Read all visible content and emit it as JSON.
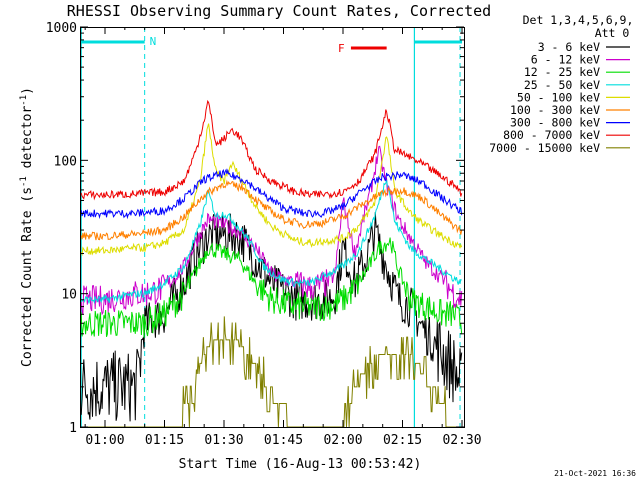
{
  "chart_data": {
    "type": "line",
    "title": "RHESSI Observing Summary Count Rates, Corrected",
    "xlabel": "Start Time (16-Aug-13 00:53:42)",
    "ylabel_pre": "Corrected Count Rate (s",
    "ylabel_exp1": "-1",
    "ylabel_mid": " detector",
    "ylabel_exp2": "-1",
    "ylabel_post": ")",
    "y_scale": "log",
    "ylim": [
      1,
      1000
    ],
    "xlim_minutes": [
      53.7,
      150.5
    ],
    "x_ticks": [
      {
        "label": "01:00",
        "minutes": 60
      },
      {
        "label": "01:15",
        "minutes": 75
      },
      {
        "label": "01:30",
        "minutes": 90
      },
      {
        "label": "01:45",
        "minutes": 105
      },
      {
        "label": "02:00",
        "minutes": 120
      },
      {
        "label": "02:15",
        "minutes": 135
      },
      {
        "label": "02:30",
        "minutes": 150
      }
    ],
    "y_ticks": [
      {
        "label": "1",
        "value": 1
      },
      {
        "label": "10",
        "value": 10
      },
      {
        "label": "100",
        "value": 100
      },
      {
        "label": "1000",
        "value": 1000
      }
    ],
    "legend_header": [
      "Det 1,3,4,5,6,9,",
      "Att 0"
    ],
    "legend_position": "right",
    "series": [
      {
        "name": "3 - 6 keV",
        "color": "#000000",
        "x": [
          54,
          60,
          68,
          70,
          75,
          80,
          83,
          86,
          90,
          94,
          98,
          102,
          108,
          112,
          116,
          118,
          120,
          123,
          126,
          128,
          131,
          134,
          137,
          141,
          145,
          148,
          150
        ],
        "values": [
          2,
          2,
          2,
          6,
          7,
          12,
          20,
          27,
          28,
          27,
          18,
          12,
          9,
          9,
          9,
          10,
          22,
          12,
          19,
          30,
          16,
          9,
          8,
          5,
          3.6,
          2.7,
          2
        ]
      },
      {
        "name": "6 - 12 keV",
        "color": "#cc00cc",
        "x": [
          54,
          60,
          68,
          70,
          75,
          80,
          83,
          86,
          90,
          94,
          98,
          102,
          108,
          112,
          116,
          118,
          120,
          123,
          125,
          127,
          129,
          131,
          134,
          137,
          141,
          145,
          148,
          150
        ],
        "values": [
          9,
          9,
          10,
          10,
          11,
          16,
          25,
          36,
          33,
          29,
          22,
          14,
          12,
          11,
          12,
          14,
          50,
          20,
          35,
          60,
          120,
          65,
          36,
          26,
          17,
          13,
          10,
          9
        ]
      },
      {
        "name": "12 - 25 keV",
        "color": "#00dd00",
        "x": [
          54,
          60,
          68,
          70,
          75,
          80,
          83,
          86,
          90,
          94,
          98,
          102,
          108,
          112,
          116,
          120,
          123,
          126,
          129,
          132,
          134,
          137,
          141,
          145,
          148,
          150
        ],
        "values": [
          6,
          6,
          6,
          6,
          7,
          10,
          15,
          22,
          20,
          18,
          12,
          9,
          8,
          8,
          8,
          9,
          11,
          15,
          22,
          25,
          15,
          9,
          8,
          7,
          7,
          6
        ]
      },
      {
        "name": "25 - 50 keV",
        "color": "#00dddd",
        "x": [
          54,
          60,
          68,
          70,
          75,
          80,
          84,
          86,
          88,
          90,
          92,
          96,
          100,
          104,
          108,
          112,
          116,
          120,
          124,
          128,
          131,
          133,
          137,
          141,
          145,
          148,
          150
        ],
        "values": [
          9,
          9,
          10,
          10,
          12,
          16,
          33,
          58,
          38,
          40,
          36,
          26,
          16,
          13,
          12,
          12,
          14,
          16,
          21,
          38,
          75,
          35,
          22,
          18,
          15,
          13,
          12
        ]
      },
      {
        "name": "50 - 100 keV",
        "color": "#dddd00",
        "x": [
          54,
          60,
          68,
          70,
          75,
          80,
          84,
          86,
          88,
          90,
          92,
          94,
          98,
          102,
          108,
          112,
          116,
          120,
          124,
          128,
          131,
          133,
          137,
          141,
          145,
          148,
          150
        ],
        "values": [
          21,
          21,
          22,
          22,
          24,
          30,
          70,
          190,
          80,
          70,
          95,
          75,
          45,
          32,
          25,
          24,
          25,
          26,
          32,
          48,
          155,
          60,
          40,
          32,
          27,
          24,
          22
        ]
      },
      {
        "name": "100 - 300 keV",
        "color": "#ff8000",
        "x": [
          54,
          60,
          68,
          75,
          80,
          85,
          90,
          95,
          100,
          105,
          110,
          115,
          120,
          125,
          130,
          135,
          140,
          145,
          150
        ],
        "values": [
          27,
          27,
          28,
          30,
          38,
          55,
          67,
          62,
          45,
          36,
          33,
          34,
          38,
          47,
          57,
          60,
          52,
          38,
          29
        ]
      },
      {
        "name": "300 - 800 keV",
        "color": "#0000ff",
        "x": [
          54,
          60,
          68,
          75,
          80,
          85,
          90,
          95,
          100,
          105,
          110,
          115,
          120,
          125,
          130,
          135,
          140,
          145,
          150
        ],
        "values": [
          40,
          40,
          40,
          42,
          52,
          72,
          80,
          72,
          55,
          44,
          40,
          40,
          45,
          60,
          75,
          78,
          68,
          52,
          41
        ]
      },
      {
        "name": "800 - 7000 keV",
        "color": "#ee0000",
        "x": [
          54,
          60,
          68,
          75,
          80,
          83,
          85,
          86,
          88,
          90,
          92,
          94,
          98,
          102,
          108,
          112,
          116,
          120,
          124,
          128,
          131,
          133,
          137,
          141,
          145,
          148,
          150
        ],
        "values": [
          55,
          55,
          56,
          58,
          70,
          120,
          200,
          280,
          130,
          145,
          170,
          150,
          85,
          70,
          58,
          55,
          56,
          58,
          70,
          110,
          240,
          120,
          105,
          90,
          75,
          65,
          56
        ]
      },
      {
        "name": "7000 - 15000 keV",
        "color": "#808000",
        "x": [
          54,
          66,
          68,
          71,
          76,
          82,
          84,
          86,
          90,
          94,
          98,
          101,
          104,
          108,
          112,
          117,
          119,
          121,
          125,
          128,
          131,
          133,
          136,
          138,
          140,
          142,
          145,
          147,
          149
        ],
        "values": [
          1,
          1,
          1,
          1,
          1,
          1.5,
          3,
          4.2,
          4.8,
          4.2,
          3,
          2,
          1.5,
          1,
          1,
          1,
          1,
          1.4,
          2.5,
          3.3,
          3.8,
          3.3,
          3.6,
          3.3,
          2.6,
          2,
          1.5,
          1,
          1
        ]
      }
    ],
    "annotations": {
      "N_label": "N",
      "F_label": "F",
      "N_bars": [
        [
          54,
          70
        ],
        [
          138,
          150
        ]
      ],
      "F_bar": [
        122,
        131
      ],
      "vlines_solid": [
        54,
        138
      ],
      "vlines_dashed": [
        70,
        149.5
      ]
    },
    "timestamp": "21-Oct-2021 16:36",
    "colors": {
      "background": "#ffffff",
      "axis": "#000000",
      "night": "#00dddd",
      "flare": "#ee0000"
    }
  }
}
